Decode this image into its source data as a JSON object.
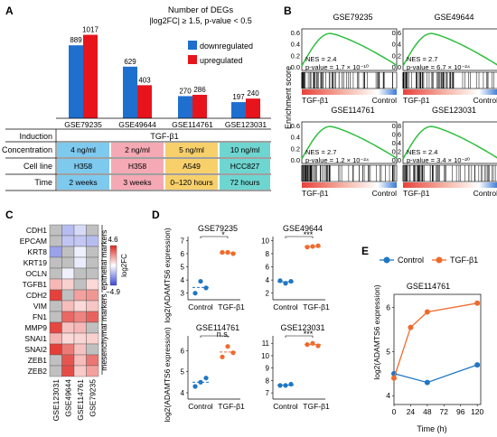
{
  "panel_letters": {
    "a": "A",
    "b": "B",
    "c": "C",
    "d": "D",
    "e": "E"
  },
  "panel_a": {
    "title_line1": "Number of DEGs",
    "title_line2": "|log2FC| ≥ 1.5, p-value < 0.5",
    "legend": {
      "down": "downregulated",
      "up": "upregulated"
    },
    "colors": {
      "down": "#1f6fcf",
      "up": "#e8141c"
    },
    "table": {
      "induction_label": "Induction",
      "induction_value": "TGF-β1",
      "concentration_label": "Concentration",
      "cellline_label": "Cell line",
      "time_label": "Time",
      "concentration": [
        "4 ng/ml",
        "2 ng/ml",
        "5 ng/ml",
        "10 ng/ml"
      ],
      "cellline": [
        "H358",
        "H358",
        "A549",
        "HCC827"
      ],
      "time": [
        "2 weeks",
        "3 weeks",
        "0–120 hours",
        "72 hours"
      ],
      "col_colors": [
        "#7ec9ee",
        "#f4a9b4",
        "#f7d06c",
        "#6fd5d0"
      ]
    }
  },
  "panel_b": {
    "ylabel": "Enrichment score",
    "left_label": "TGF-β1",
    "right_label": "Control",
    "plots": [
      {
        "title": "GSE79235",
        "nes": "NES = 2.4",
        "pval": "p-value = 1.7 × 10⁻¹⁰",
        "ticks": [
          "0.6",
          "0.4",
          "0.2",
          "0.0"
        ]
      },
      {
        "title": "GSE49644",
        "nes": "NES = 2.7",
        "pval": "p-value = 6.7 × 10⁻²⁴",
        "ticks": [
          "0.6",
          "0.4",
          "0.2",
          "0.0"
        ]
      },
      {
        "title": "GSE114761",
        "nes": "NES = 2.7",
        "pval": "p-value = 1.2 × 10⁻²⁴",
        "ticks": [
          "0.6",
          "0.4",
          "0.2",
          "0.0"
        ]
      },
      {
        "title": "GSE123031",
        "nes": "NES = 2.4",
        "pval": "p-value = 3.4 × 10⁻²⁰",
        "ticks": [
          "0.8",
          "0.6",
          "0.4",
          "0.2",
          "0.0"
        ]
      }
    ]
  },
  "panel_c": {
    "genes": [
      "CDH1",
      "EPCAM",
      "KRT8",
      "KRT19",
      "OCLN",
      "TGFB1",
      "CDH2",
      "VIM",
      "FN1",
      "MMP9",
      "SNAI1",
      "SNAI2",
      "ZEB1",
      "ZEB2"
    ],
    "datasets": [
      "GSE123031",
      "GSE49644",
      "GSE114761",
      "GSE79235"
    ],
    "epithelial_label": "epithelial markers",
    "mesenchymal_label": "mesenchymal markers",
    "legend_max": "4.6",
    "legend_min": "−4.9",
    "legend_label": "log2FC",
    "min": -4.9,
    "max": 4.6,
    "values": [
      [
        null,
        -1.8,
        -1.0,
        null
      ],
      [
        null,
        -1.6,
        -1.5,
        -1.8
      ],
      [
        -2.5,
        null,
        -0.4,
        null
      ],
      [
        null,
        null,
        -0.5,
        null
      ],
      [
        null,
        -0.4,
        null,
        null
      ],
      [
        1.5,
        1.0,
        null,
        0.8
      ],
      [
        4.0,
        null,
        2.0,
        2.2
      ],
      [
        null,
        1.4,
        0.8,
        1.2
      ],
      [
        null,
        3.2,
        2.6,
        3.3
      ],
      [
        3.9,
        1.3,
        1.5,
        null
      ],
      [
        1.6,
        0.8,
        0.9,
        1.0
      ],
      [
        4.1,
        2.8,
        1.3,
        null
      ],
      [
        null,
        3.6,
        1.4,
        2.9
      ],
      [
        null,
        3.8,
        1.1,
        2.0
      ]
    ]
  },
  "panel_d": {
    "ylabel": "log2(ADAMTS6 expression)",
    "x_labels": [
      "Control",
      "TGF-β1"
    ],
    "plots": [
      {
        "title": "GSE79235",
        "sig": "*",
        "ticks": [
          "7",
          "6",
          "5",
          "4",
          "3"
        ],
        "ymin": 2.5,
        "ymax": 7.3,
        "control": [
          3.0,
          3.9,
          3.4
        ],
        "tgf": [
          6.1,
          6.1,
          6.0
        ]
      },
      {
        "title": "GSE49644",
        "sig": "***",
        "ticks": [
          "10",
          "8",
          "6",
          "4",
          "2"
        ],
        "ymin": 1.0,
        "ymax": 10.6,
        "control": [
          3.9,
          3.5,
          3.8
        ],
        "tgf": [
          9.0,
          9.1,
          9.2
        ]
      },
      {
        "title": "GSE114761",
        "sig": "n.s.",
        "ticks": [
          "6",
          "5",
          "4"
        ],
        "ymin": 3.7,
        "ymax": 6.7,
        "control": [
          4.3,
          4.5,
          4.7
        ],
        "tgf": [
          5.7,
          6.2,
          5.9
        ]
      },
      {
        "title": "GSE123031",
        "sig": "***",
        "ticks": [
          "11",
          "10",
          "9",
          "8",
          "7"
        ],
        "ymin": 6.5,
        "ymax": 11.6,
        "control": [
          7.6,
          7.6,
          7.7
        ],
        "tgf": [
          10.9,
          11.0,
          10.8
        ]
      }
    ],
    "colors": {
      "control": "#1f77c4",
      "tgf": "#ef6b2c"
    }
  },
  "chart_data": {
    "type": "line",
    "title": "GSE114761",
    "xlabel": "Time (h)",
    "ylabel": "log2(ADAMTS6 expression)",
    "x": [
      0,
      24,
      48,
      72,
      96,
      120
    ],
    "xlim": [
      0,
      125
    ],
    "ylim": [
      3.8,
      6.3
    ],
    "yticks": [
      4,
      5,
      6
    ],
    "series": [
      {
        "name": "Control",
        "color": "#1f77c4",
        "x": [
          0,
          48,
          120
        ],
        "values": [
          4.5,
          4.3,
          4.7
        ]
      },
      {
        "name": "TGF-β1",
        "color": "#ef6b2c",
        "x": [
          0,
          24,
          48,
          120
        ],
        "values": [
          4.4,
          5.55,
          5.9,
          6.1
        ]
      }
    ],
    "grid": false,
    "legend": "top"
  },
  "panel_a_chart": {
    "type": "bar",
    "categories": [
      "GSE79235",
      "GSE49644",
      "GSE114761",
      "GSE123031"
    ],
    "series": [
      {
        "name": "downregulated",
        "values": [
          889,
          629,
          270,
          197
        ]
      },
      {
        "name": "upregulated",
        "values": [
          1017,
          403,
          286,
          240
        ]
      }
    ],
    "ylim": [
      0,
      1100
    ]
  }
}
